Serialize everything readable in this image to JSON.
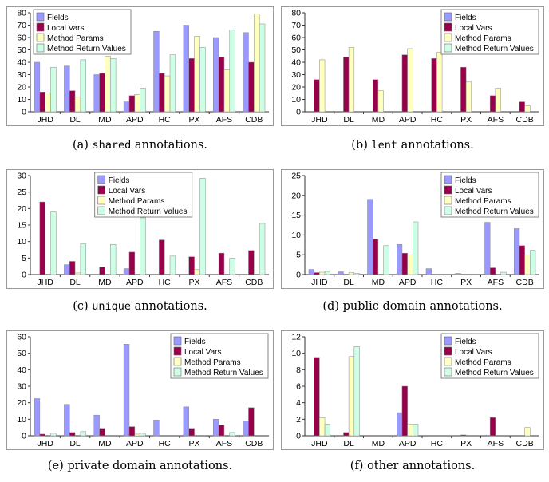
{
  "colors": {
    "Fields": "#9999ff",
    "Local Vars": "#99004c",
    "Method Params": "#ffffc0",
    "Method Return Values": "#ccffe6"
  },
  "chart_data": [
    {
      "type": "bar",
      "caption_prefix": "(a) ",
      "caption_code": "shared",
      "caption_suffix": " annotations.",
      "categories": [
        "JHD",
        "DL",
        "MD",
        "APD",
        "HC",
        "PX",
        "AFS",
        "CDB"
      ],
      "ylim": [
        0,
        80
      ],
      "yticks": [
        0,
        10,
        20,
        30,
        40,
        50,
        60,
        70,
        80
      ],
      "legend": "top-left",
      "series": [
        {
          "name": "Fields",
          "values": [
            40,
            37,
            30,
            8,
            65,
            70,
            60,
            64
          ]
        },
        {
          "name": "Local Vars",
          "values": [
            16,
            17,
            31,
            13,
            31,
            43,
            44,
            40
          ]
        },
        {
          "name": "Method Params",
          "values": [
            15,
            12,
            45,
            14,
            29,
            61,
            34,
            79
          ]
        },
        {
          "name": "Method Return Values",
          "values": [
            36,
            42,
            43,
            19,
            46,
            52,
            66,
            71
          ]
        }
      ]
    },
    {
      "type": "bar",
      "caption_prefix": "(b) ",
      "caption_code": "lent",
      "caption_suffix": " annotations.",
      "categories": [
        "JHD",
        "DL",
        "MD",
        "APD",
        "HC",
        "PX",
        "AFS",
        "CDB"
      ],
      "ylim": [
        0,
        80
      ],
      "yticks": [
        0,
        10,
        20,
        30,
        40,
        50,
        60,
        70,
        80
      ],
      "legend": "top-right",
      "series": [
        {
          "name": "Fields",
          "values": [
            0,
            0,
            0,
            0,
            0,
            0,
            0,
            0
          ]
        },
        {
          "name": "Local Vars",
          "values": [
            26,
            44,
            26,
            46,
            43,
            36,
            13,
            8
          ]
        },
        {
          "name": "Method Params",
          "values": [
            42,
            52,
            17,
            51,
            48,
            24,
            19,
            5
          ]
        },
        {
          "name": "Method Return Values",
          "values": [
            0,
            0,
            0,
            0,
            0,
            0,
            0,
            0
          ]
        }
      ]
    },
    {
      "type": "bar",
      "caption_prefix": "(c) ",
      "caption_code": "unique",
      "caption_suffix": " annotations.",
      "categories": [
        "JHD",
        "DL",
        "MD",
        "APD",
        "HC",
        "PX",
        "AFS",
        "CDB"
      ],
      "ylim": [
        0,
        30
      ],
      "yticks": [
        0,
        5,
        10,
        15,
        20,
        25,
        30
      ],
      "legend": "top-center",
      "series": [
        {
          "name": "Fields",
          "values": [
            0,
            3,
            0,
            1.8,
            0,
            0,
            0,
            0
          ]
        },
        {
          "name": "Local Vars",
          "values": [
            22,
            4,
            2.3,
            6.8,
            10.5,
            5.4,
            6.5,
            7.3
          ]
        },
        {
          "name": "Method Params",
          "values": [
            0,
            0.5,
            0,
            0,
            0,
            1.5,
            0,
            0
          ]
        },
        {
          "name": "Method Return Values",
          "values": [
            19,
            9.3,
            9.1,
            17.2,
            5.6,
            29.2,
            5,
            15.5
          ]
        }
      ]
    },
    {
      "type": "bar",
      "caption_prefix": "(d) ",
      "caption_code": "",
      "caption_suffix": "public domain annotations.",
      "categories": [
        "JHD",
        "DL",
        "MD",
        "APD",
        "HC",
        "PX",
        "AFS",
        "CDB"
      ],
      "ylim": [
        0,
        25
      ],
      "yticks": [
        0,
        5,
        10,
        15,
        20,
        25
      ],
      "legend": "top-right",
      "series": [
        {
          "name": "Fields",
          "values": [
            1.3,
            0.7,
            19,
            7.6,
            1.5,
            0.3,
            13.2,
            11.6
          ]
        },
        {
          "name": "Local Vars",
          "values": [
            0.5,
            0,
            8.9,
            5.4,
            0,
            0,
            1.7,
            7.3
          ]
        },
        {
          "name": "Method Params",
          "values": [
            0.6,
            0.5,
            0,
            5,
            0,
            0,
            0,
            5
          ]
        },
        {
          "name": "Method Return Values",
          "values": [
            0.8,
            0.3,
            7.3,
            13.3,
            0,
            0,
            0.6,
            6.1
          ]
        }
      ]
    },
    {
      "type": "bar",
      "caption_prefix": "(e) ",
      "caption_code": "",
      "caption_suffix": "private domain annotations.",
      "categories": [
        "JHD",
        "DL",
        "MD",
        "APD",
        "HC",
        "PX",
        "AFS",
        "CDB"
      ],
      "ylim": [
        0,
        60
      ],
      "yticks": [
        0,
        10,
        20,
        30,
        40,
        50,
        60
      ],
      "legend": "top-right",
      "series": [
        {
          "name": "Fields",
          "values": [
            22.5,
            19,
            12.5,
            55.5,
            9.5,
            17.5,
            10,
            9
          ]
        },
        {
          "name": "Local Vars",
          "values": [
            1,
            2,
            4.5,
            5.5,
            0,
            4.5,
            6.5,
            17
          ]
        },
        {
          "name": "Method Params",
          "values": [
            0,
            0,
            0,
            1,
            0,
            0,
            0,
            0
          ]
        },
        {
          "name": "Method Return Values",
          "values": [
            1.5,
            2.5,
            0,
            1.5,
            0,
            0,
            2,
            0
          ]
        }
      ]
    },
    {
      "type": "bar",
      "caption_prefix": "(f) ",
      "caption_code": "",
      "caption_suffix": "other annotations.",
      "categories": [
        "JHD",
        "DL",
        "MD",
        "APD",
        "HC",
        "PX",
        "AFS",
        "CDB"
      ],
      "ylim": [
        0,
        12
      ],
      "yticks": [
        0,
        2,
        4,
        6,
        8,
        10,
        12
      ],
      "legend": "top-right",
      "series": [
        {
          "name": "Fields",
          "values": [
            0,
            0,
            0,
            2.8,
            0,
            0,
            0,
            0
          ]
        },
        {
          "name": "Local Vars",
          "values": [
            9.5,
            0.4,
            0,
            6,
            0,
            0.1,
            2.2,
            0
          ]
        },
        {
          "name": "Method Params",
          "values": [
            2.2,
            9.6,
            0,
            1.4,
            0,
            0,
            0,
            1
          ]
        },
        {
          "name": "Method Return Values",
          "values": [
            1.4,
            10.8,
            0,
            1.4,
            0,
            0,
            0,
            0
          ]
        }
      ]
    }
  ]
}
